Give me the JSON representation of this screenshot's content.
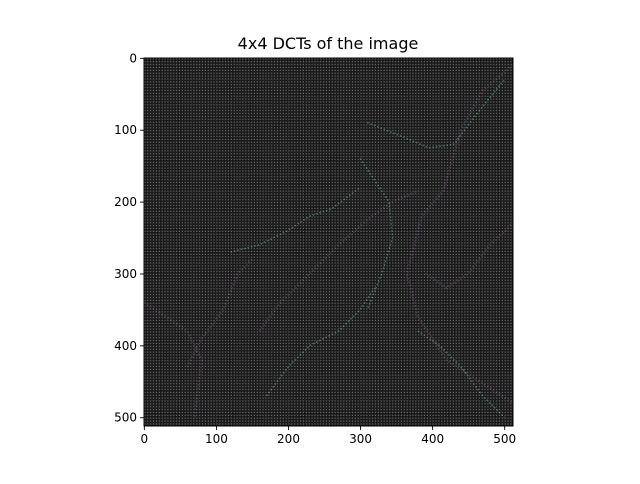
{
  "chart_data": {
    "type": "heatmap",
    "title": "4x4 DCTs of the image",
    "xlabel": "",
    "ylabel": "",
    "xlim": [
      0,
      512
    ],
    "ylim": [
      512,
      0
    ],
    "x_ticks": [
      0,
      100,
      200,
      300,
      400,
      500
    ],
    "y_ticks": [
      0,
      100,
      200,
      300,
      400,
      500
    ],
    "block_size": 4,
    "colors": {
      "background": "#1a1a1a",
      "dc_dots": "#c8c8c8",
      "edge_green": "#4a8f6a",
      "edge_purple": "#5a3a5a"
    }
  }
}
